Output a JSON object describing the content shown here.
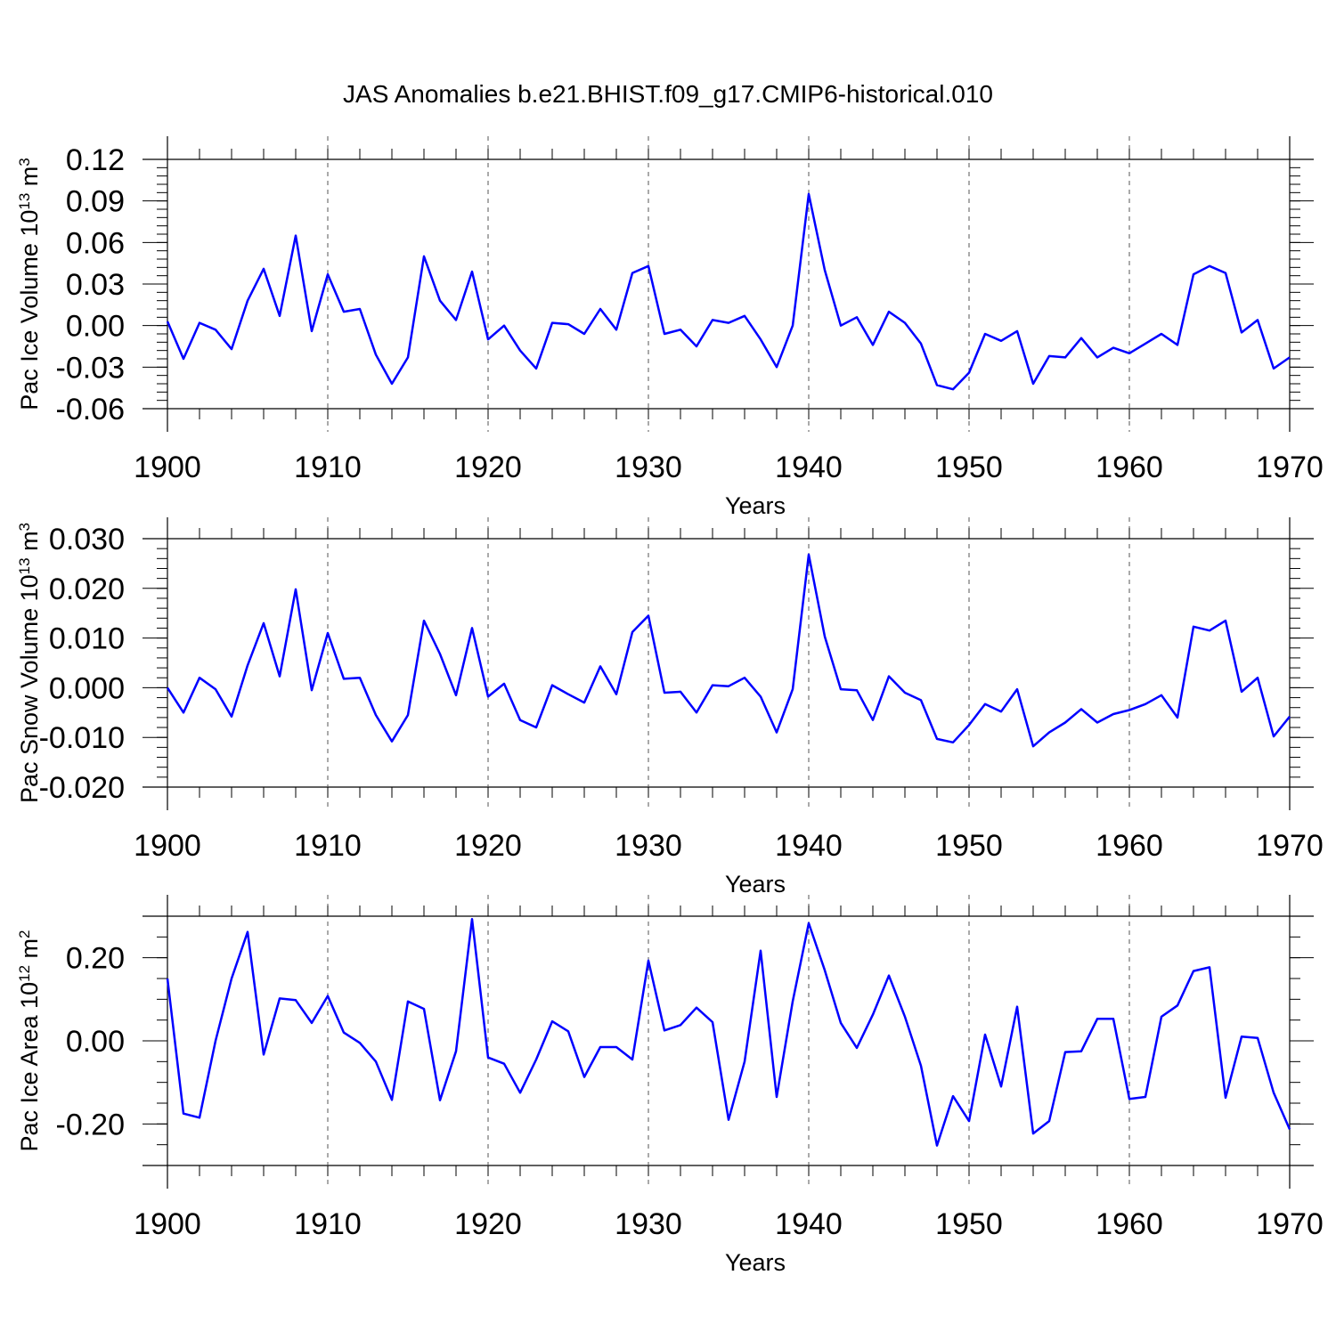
{
  "title": "JAS Anomalies b.e21.BHIST.f09_g17.CMIP6-historical.010",
  "series_color": "#0000ff",
  "chart_data": [
    {
      "type": "line",
      "xlabel": "Years",
      "ylabel": "Pac Ice Volume 10",
      "ylabel_sup1": "13",
      "ylabel_mid": " m",
      "ylabel_sup2": "3",
      "xlim": [
        1900,
        1970
      ],
      "ylim": [
        -0.06,
        0.12
      ],
      "x_ticks": [
        "1900",
        "1910",
        "1920",
        "1930",
        "1940",
        "1950",
        "1960",
        "1970"
      ],
      "y_ticks": [
        "-0.06",
        "-0.03",
        "0.00",
        "0.03",
        "0.06",
        "0.09",
        "0.12"
      ],
      "y_tick_values": [
        -0.06,
        -0.03,
        0.0,
        0.03,
        0.06,
        0.09,
        0.12
      ],
      "y_minor_step": 0.006,
      "x": [
        1900,
        1901,
        1902,
        1903,
        1904,
        1905,
        1906,
        1907,
        1908,
        1909,
        1910,
        1911,
        1912,
        1913,
        1914,
        1915,
        1916,
        1917,
        1918,
        1919,
        1920,
        1921,
        1922,
        1923,
        1924,
        1925,
        1926,
        1927,
        1928,
        1929,
        1930,
        1931,
        1932,
        1933,
        1934,
        1935,
        1936,
        1937,
        1938,
        1939,
        1940,
        1941,
        1942,
        1943,
        1944,
        1945,
        1946,
        1947,
        1948,
        1949,
        1950,
        1951,
        1952,
        1953,
        1954,
        1955,
        1956,
        1957,
        1958,
        1959,
        1960,
        1961,
        1962,
        1963,
        1964,
        1965,
        1966,
        1967,
        1968,
        1969,
        1970
      ],
      "values": [
        0.003,
        -0.024,
        0.002,
        -0.003,
        -0.017,
        0.018,
        0.041,
        0.007,
        0.065,
        -0.004,
        0.037,
        0.01,
        0.012,
        -0.021,
        -0.042,
        -0.023,
        0.05,
        0.018,
        0.004,
        0.039,
        -0.01,
        0.0,
        -0.018,
        -0.031,
        0.002,
        0.001,
        -0.006,
        0.012,
        -0.003,
        0.038,
        0.043,
        -0.006,
        -0.003,
        -0.015,
        0.004,
        0.002,
        0.007,
        -0.01,
        -0.03,
        0.0,
        0.095,
        0.04,
        0.0,
        0.006,
        -0.014,
        0.01,
        0.002,
        -0.013,
        -0.043,
        -0.046,
        -0.034,
        -0.006,
        -0.011,
        -0.004,
        -0.042,
        -0.022,
        -0.023,
        -0.009,
        -0.023,
        -0.016,
        -0.02,
        -0.013,
        -0.006,
        -0.014,
        0.037,
        0.043,
        0.038,
        -0.005,
        0.004,
        -0.031,
        -0.023
      ]
    },
    {
      "type": "line",
      "xlabel": "Years",
      "ylabel": "Pac Snow Volume 10",
      "ylabel_sup1": "13",
      "ylabel_mid": " m",
      "ylabel_sup2": "3",
      "xlim": [
        1900,
        1970
      ],
      "ylim": [
        -0.02,
        0.03
      ],
      "x_ticks": [
        "1900",
        "1910",
        "1920",
        "1930",
        "1940",
        "1950",
        "1960",
        "1970"
      ],
      "y_ticks": [
        "-0.020",
        "-0.010",
        "0.000",
        "0.010",
        "0.020",
        "0.030"
      ],
      "y_tick_values": [
        -0.02,
        -0.01,
        0.0,
        0.01,
        0.02,
        0.03
      ],
      "y_minor_step": 0.002,
      "x": [
        1900,
        1901,
        1902,
        1903,
        1904,
        1905,
        1906,
        1907,
        1908,
        1909,
        1910,
        1911,
        1912,
        1913,
        1914,
        1915,
        1916,
        1917,
        1918,
        1919,
        1920,
        1921,
        1922,
        1923,
        1924,
        1925,
        1926,
        1927,
        1928,
        1929,
        1930,
        1931,
        1932,
        1933,
        1934,
        1935,
        1936,
        1937,
        1938,
        1939,
        1940,
        1941,
        1942,
        1943,
        1944,
        1945,
        1946,
        1947,
        1948,
        1949,
        1950,
        1951,
        1952,
        1953,
        1954,
        1955,
        1956,
        1957,
        1958,
        1959,
        1960,
        1961,
        1962,
        1963,
        1964,
        1965,
        1966,
        1967,
        1968,
        1969,
        1970
      ],
      "values": [
        0.0,
        -0.005,
        0.002,
        -0.0003,
        -0.0058,
        0.0045,
        0.013,
        0.0023,
        0.0198,
        -0.0005,
        0.011,
        0.0018,
        0.002,
        -0.0055,
        -0.0108,
        -0.0055,
        0.0135,
        0.0068,
        -0.0015,
        0.012,
        -0.0018,
        0.0008,
        -0.0065,
        -0.008,
        0.0005,
        -0.0013,
        -0.003,
        0.0043,
        -0.0013,
        0.0112,
        0.0145,
        -0.001,
        -0.0008,
        -0.005,
        0.0005,
        0.0003,
        0.002,
        -0.0018,
        -0.009,
        -0.0003,
        0.0268,
        0.0103,
        -0.0003,
        -0.0005,
        -0.0065,
        0.0023,
        -0.001,
        -0.0025,
        -0.0103,
        -0.011,
        -0.0075,
        -0.0033,
        -0.0048,
        -0.0003,
        -0.0118,
        -0.009,
        -0.007,
        -0.0043,
        -0.007,
        -0.0053,
        -0.0045,
        -0.0033,
        -0.0015,
        -0.006,
        0.0123,
        0.0115,
        0.0135,
        -0.0008,
        0.002,
        -0.0098,
        -0.0058
      ]
    },
    {
      "type": "line",
      "xlabel": "Years",
      "ylabel": "Pac Ice Area 10",
      "ylabel_sup1": "12",
      "ylabel_mid": " m",
      "ylabel_sup2": "2",
      "xlim": [
        1900,
        1970
      ],
      "ylim": [
        -0.3,
        0.3
      ],
      "x_ticks": [
        "1900",
        "1910",
        "1920",
        "1930",
        "1940",
        "1950",
        "1960",
        "1970"
      ],
      "y_ticks": [
        "-0.20",
        "0.00",
        "0.20"
      ],
      "y_tick_values": [
        -0.2,
        0.0,
        0.2
      ],
      "y_minor_step": 0.05,
      "x": [
        1900,
        1901,
        1902,
        1903,
        1904,
        1905,
        1906,
        1907,
        1908,
        1909,
        1910,
        1911,
        1912,
        1913,
        1914,
        1915,
        1916,
        1917,
        1918,
        1919,
        1920,
        1921,
        1922,
        1923,
        1924,
        1925,
        1926,
        1927,
        1928,
        1929,
        1930,
        1931,
        1932,
        1933,
        1934,
        1935,
        1936,
        1937,
        1938,
        1939,
        1940,
        1941,
        1942,
        1943,
        1944,
        1945,
        1946,
        1947,
        1948,
        1949,
        1950,
        1951,
        1952,
        1953,
        1954,
        1955,
        1956,
        1957,
        1958,
        1959,
        1960,
        1961,
        1962,
        1963,
        1964,
        1965,
        1966,
        1967,
        1968,
        1969,
        1970
      ],
      "values": [
        0.15,
        -0.175,
        -0.185,
        0.0,
        0.15,
        0.262,
        -0.033,
        0.102,
        0.098,
        0.043,
        0.108,
        0.02,
        -0.005,
        -0.05,
        -0.142,
        0.095,
        0.077,
        -0.143,
        -0.025,
        0.293,
        -0.04,
        -0.055,
        -0.125,
        -0.045,
        0.047,
        0.023,
        -0.087,
        -0.015,
        -0.015,
        -0.045,
        0.193,
        0.025,
        0.038,
        0.08,
        0.045,
        -0.19,
        -0.05,
        0.217,
        -0.135,
        0.095,
        0.283,
        0.17,
        0.043,
        -0.017,
        0.063,
        0.157,
        0.058,
        -0.06,
        -0.252,
        -0.133,
        -0.193,
        0.015,
        -0.11,
        0.082,
        -0.223,
        -0.193,
        -0.027,
        -0.025,
        0.053,
        0.053,
        -0.14,
        -0.135,
        0.058,
        0.085,
        0.168,
        0.177,
        -0.137,
        0.01,
        0.007,
        -0.125,
        -0.213
      ]
    }
  ]
}
